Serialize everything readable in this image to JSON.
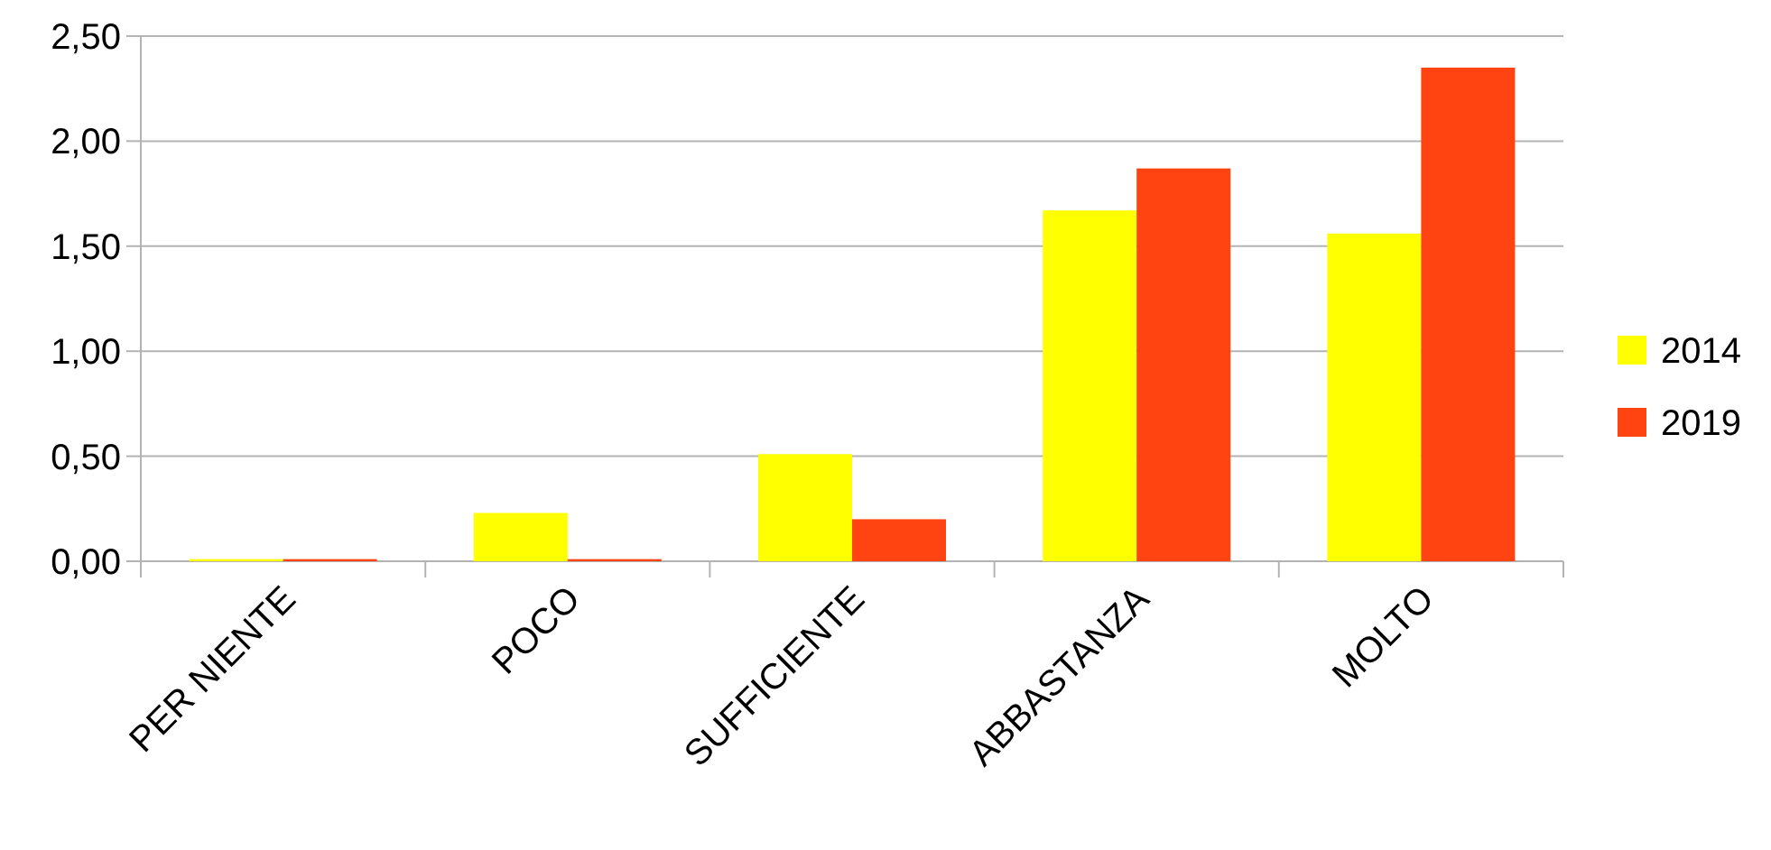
{
  "chart_data": {
    "type": "bar",
    "categories": [
      "PER NIENTE",
      "POCO",
      "SUFFICIENTE",
      "ABBASTANZA",
      "MOLTO"
    ],
    "series": [
      {
        "name": "2014",
        "color": "#ffff00",
        "values": [
          0.01,
          0.23,
          0.51,
          1.67,
          1.56
        ]
      },
      {
        "name": "2019",
        "color": "#ff4411",
        "values": [
          0.01,
          0.01,
          0.2,
          1.87,
          2.35
        ]
      }
    ],
    "ylim": [
      0,
      2.5
    ],
    "yticks": [
      {
        "value": 0,
        "label": "0,00"
      },
      {
        "value": 0.5,
        "label": "0,50"
      },
      {
        "value": 1,
        "label": "1,00"
      },
      {
        "value": 1.5,
        "label": "1,50"
      },
      {
        "value": 2,
        "label": "2,00"
      },
      {
        "value": 2.5,
        "label": "2,50"
      }
    ],
    "grid": "y",
    "legend": "right"
  }
}
